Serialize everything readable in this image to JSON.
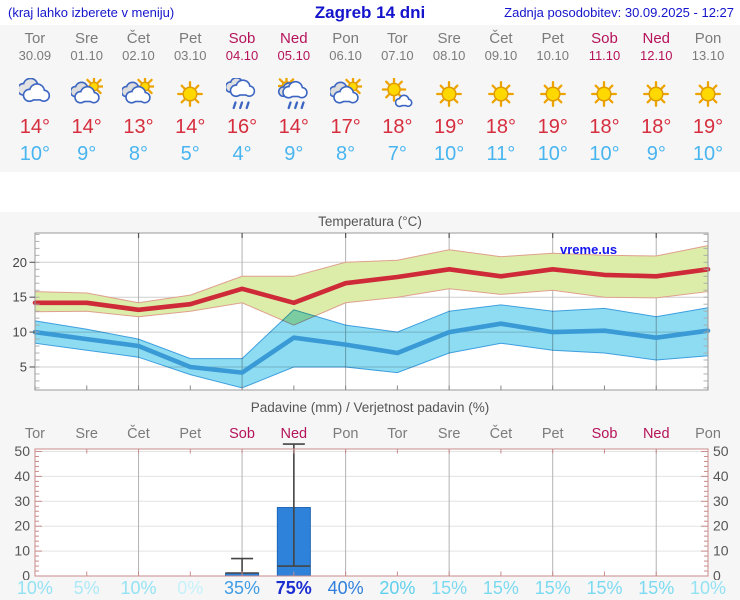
{
  "header": {
    "left_note": "(kraj lahko izberete v meniju)",
    "title": "Zagreb 14 dni",
    "updated": "Zadnja posodobitev: 30.09.2025 - 12:27"
  },
  "watermark": "vreme.us",
  "forecast": {
    "days": [
      {
        "name": "Tor",
        "date": "30.09",
        "weekend": false,
        "icon": "cloudy",
        "tmax": "14°",
        "tmin": "10°",
        "precip_prob": "10%"
      },
      {
        "name": "Sre",
        "date": "01.10",
        "weekend": false,
        "icon": "partly-sunny",
        "tmax": "14°",
        "tmin": "9°",
        "precip_prob": "5%"
      },
      {
        "name": "Čet",
        "date": "02.10",
        "weekend": false,
        "icon": "partly-sunny",
        "tmax": "13°",
        "tmin": "8°",
        "precip_prob": "10%"
      },
      {
        "name": "Pet",
        "date": "03.10",
        "weekend": false,
        "icon": "sunny",
        "tmax": "14°",
        "tmin": "5°",
        "precip_prob": "0%"
      },
      {
        "name": "Sob",
        "date": "04.10",
        "weekend": true,
        "icon": "rain",
        "tmax": "16°",
        "tmin": "4°",
        "precip_prob": "35%"
      },
      {
        "name": "Ned",
        "date": "05.10",
        "weekend": true,
        "icon": "sun-rain",
        "tmax": "14°",
        "tmin": "9°",
        "precip_prob": "75%"
      },
      {
        "name": "Pon",
        "date": "06.10",
        "weekend": false,
        "icon": "partly-sunny",
        "tmax": "17°",
        "tmin": "8°",
        "precip_prob": "40%"
      },
      {
        "name": "Tor",
        "date": "07.10",
        "weekend": false,
        "icon": "mostly-sunny",
        "tmax": "18°",
        "tmin": "7°",
        "precip_prob": "20%"
      },
      {
        "name": "Sre",
        "date": "08.10",
        "weekend": false,
        "icon": "sunny",
        "tmax": "19°",
        "tmin": "10°",
        "precip_prob": "15%"
      },
      {
        "name": "Čet",
        "date": "09.10",
        "weekend": false,
        "icon": "sunny",
        "tmax": "18°",
        "tmin": "11°",
        "precip_prob": "15%"
      },
      {
        "name": "Pet",
        "date": "10.10",
        "weekend": false,
        "icon": "sunny",
        "tmax": "19°",
        "tmin": "10°",
        "precip_prob": "15%"
      },
      {
        "name": "Sob",
        "date": "11.10",
        "weekend": true,
        "icon": "sunny",
        "tmax": "18°",
        "tmin": "10°",
        "precip_prob": "15%"
      },
      {
        "name": "Ned",
        "date": "12.10",
        "weekend": true,
        "icon": "sunny",
        "tmax": "18°",
        "tmin": "9°",
        "precip_prob": "15%"
      },
      {
        "name": "Pon",
        "date": "13.10",
        "weekend": false,
        "icon": "sunny",
        "tmax": "19°",
        "tmin": "10°",
        "precip_prob": "10%"
      }
    ]
  },
  "chart_data": [
    {
      "type": "area",
      "title": "Temperatura (°C)",
      "categories": [
        "Tor 30.09",
        "Sre 01.10",
        "Čet 02.10",
        "Pet 03.10",
        "Sob 04.10",
        "Ned 05.10",
        "Pon 06.10",
        "Tor 07.10",
        "Sre 08.10",
        "Čet 09.10",
        "Pet 10.10",
        "Sob 11.10",
        "Ned 12.10",
        "Pon 13.10"
      ],
      "ylim": [
        1.7,
        24.2
      ],
      "yticks": [
        5,
        10,
        15,
        20
      ],
      "grid_x_indices": [
        2,
        4,
        6,
        8,
        10,
        12
      ],
      "legend": "none",
      "watermark": "vreme.us",
      "series": [
        {
          "name": "tmax-range",
          "type": "band",
          "upper": [
            15.8,
            15.6,
            14.2,
            15.3,
            18,
            18,
            20,
            20.3,
            21.8,
            20.8,
            21.3,
            21,
            20.9,
            22.4
          ],
          "lower": [
            12.9,
            13,
            12.2,
            13,
            14.2,
            11,
            14.2,
            15,
            16.2,
            15.4,
            16,
            15,
            14.9,
            15.8
          ],
          "fill": "#dcedaa",
          "stroke": "#dfa08d"
        },
        {
          "name": "tmin-range",
          "type": "band",
          "upper": [
            11.6,
            10.4,
            9,
            6.2,
            6.2,
            13.2,
            11,
            10,
            13,
            13.9,
            13,
            13.4,
            12.2,
            13.5
          ],
          "lower": [
            8.4,
            7.4,
            6.4,
            3.9,
            2,
            5,
            5,
            4.2,
            7,
            8.4,
            7.4,
            7,
            6,
            6.6
          ],
          "fill": "#8edcf2",
          "stroke": "#3e9fdf"
        },
        {
          "name": "tmax",
          "type": "line",
          "values": [
            14.2,
            14.2,
            13.2,
            14,
            16.2,
            14.2,
            17,
            17.9,
            19,
            18,
            19,
            18.2,
            18,
            19
          ],
          "color": "#ce2a38"
        },
        {
          "name": "tmin",
          "type": "line",
          "values": [
            10,
            9,
            8,
            5,
            4.2,
            9.2,
            8.2,
            7,
            10,
            11.2,
            10,
            10.2,
            9.2,
            10.2
          ],
          "color": "#3a9ad6"
        }
      ]
    },
    {
      "type": "bar",
      "title": "Padavine (mm) / Verjetnost padavin (%)",
      "categories": [
        "Tor",
        "Sre",
        "Čet",
        "Pet",
        "Sob",
        "Ned",
        "Pon",
        "Tor",
        "Sre",
        "Čet",
        "Pet",
        "Sob",
        "Ned",
        "Pon"
      ],
      "weekend_flags": [
        false,
        false,
        false,
        false,
        true,
        true,
        false,
        false,
        false,
        false,
        false,
        true,
        true,
        false
      ],
      "values": [
        0,
        0,
        0,
        0,
        1.2,
        27.5,
        0,
        0,
        0,
        0,
        0,
        0,
        0,
        0
      ],
      "whiskers": [
        null,
        null,
        null,
        null,
        {
          "low": 1.2,
          "high": 7
        },
        {
          "low": 4,
          "high": 53
        },
        null,
        null,
        null,
        null,
        null,
        null,
        null,
        null
      ],
      "ylim": [
        0,
        51
      ],
      "yticks": [
        0,
        10,
        20,
        30,
        40,
        50
      ],
      "grid_x_indices": [
        2,
        4,
        6,
        8,
        10,
        12
      ],
      "bar_color": "#2e82d9",
      "bar_stroke": "#2066b8",
      "probabilities": [
        "10%",
        "5%",
        "10%",
        "0%",
        "35%",
        "75%",
        "40%",
        "20%",
        "15%",
        "15%",
        "15%",
        "15%",
        "15%",
        "10%"
      ]
    }
  ],
  "colors": {
    "header_blue": "#1414cc",
    "weekend_red": "#b5135a",
    "weekday_gray": "#7b7b7b",
    "tmax_red": "#d62e3e",
    "tmin_blue": "#49b5f0",
    "precip_frame_pink": "#c98b8b",
    "prob_colors": {
      "0%": "#c6f1fa",
      "5%": "#ace9f7",
      "10%": "#93e2f4",
      "15%": "#7bdaf1",
      "20%": "#5ed0ed",
      "35%": "#3f9ce4",
      "40%": "#2f7edc",
      "75%": "#1b2ed0"
    }
  }
}
